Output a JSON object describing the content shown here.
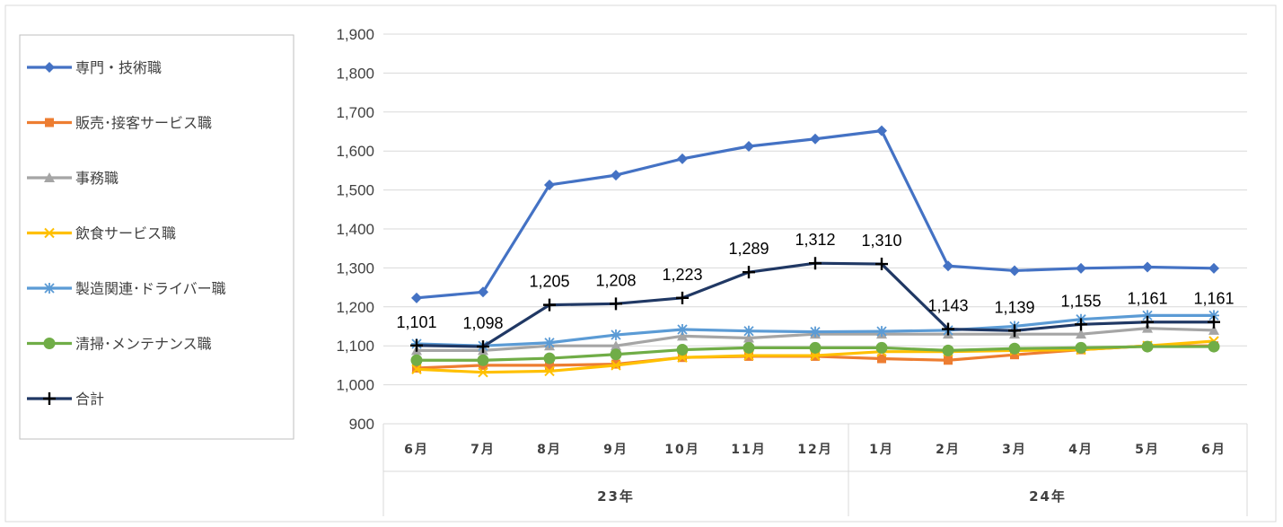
{
  "chart_data": {
    "type": "line",
    "title": "",
    "xlabel": "",
    "ylabel": "",
    "ylim": [
      900,
      1900
    ],
    "y_ticks": [
      "900",
      "1,000",
      "1,100",
      "1,200",
      "1,300",
      "1,400",
      "1,500",
      "1,600",
      "1,700",
      "1,800",
      "1,900"
    ],
    "categories": [
      "6月",
      "7月",
      "8月",
      "9月",
      "10月",
      "11月",
      "12月",
      "1月",
      "2月",
      "3月",
      "4月",
      "5月",
      "6月"
    ],
    "category_groups": [
      {
        "label": "23年",
        "count": 7
      },
      {
        "label": "24年",
        "count": 6
      }
    ],
    "grid": true,
    "legend_position": "left",
    "series": [
      {
        "name": "専門・技術職",
        "color": "#4472C4",
        "marker": "diamond",
        "values": [
          1223,
          1238,
          1513,
          1538,
          1580,
          1612,
          1631,
          1652,
          1305,
          1293,
          1299,
          1302,
          1299
        ]
      },
      {
        "name": "販売･接客サービス職",
        "color": "#ED7D31",
        "marker": "square",
        "values": [
          1043,
          1050,
          1050,
          1053,
          1070,
          1073,
          1073,
          1067,
          1063,
          1077,
          1090,
          1100,
          1100
        ]
      },
      {
        "name": "事務職",
        "color": "#A5A5A5",
        "marker": "triangle",
        "values": [
          1088,
          1088,
          1100,
          1100,
          1125,
          1120,
          1130,
          1130,
          1130,
          1130,
          1130,
          1145,
          1140
        ]
      },
      {
        "name": "飲食サービス職",
        "color": "#FFC000",
        "marker": "x",
        "values": [
          1040,
          1032,
          1035,
          1050,
          1070,
          1075,
          1075,
          1085,
          1085,
          1088,
          1090,
          1100,
          1112
        ]
      },
      {
        "name": "製造関連･ドライバー職",
        "color": "#5B9BD5",
        "marker": "star",
        "values": [
          1105,
          1100,
          1108,
          1128,
          1142,
          1138,
          1136,
          1137,
          1140,
          1150,
          1168,
          1178,
          1178
        ]
      },
      {
        "name": "清掃･メンテナンス職",
        "color": "#70AD47",
        "marker": "circle",
        "values": [
          1063,
          1063,
          1068,
          1078,
          1090,
          1095,
          1095,
          1095,
          1088,
          1093,
          1095,
          1098,
          1098
        ]
      },
      {
        "name": "合計",
        "color": "#203864",
        "marker": "plus",
        "values": [
          1101,
          1098,
          1205,
          1208,
          1223,
          1289,
          1312,
          1310,
          1143,
          1139,
          1155,
          1161,
          1161
        ],
        "data_labels": [
          "1,101",
          "1,098",
          "1,205",
          "1,208",
          "1,223",
          "1,289",
          "1,312",
          "1,310",
          "1,143",
          "1,139",
          "1,155",
          "1,161",
          "1,161"
        ]
      }
    ]
  }
}
